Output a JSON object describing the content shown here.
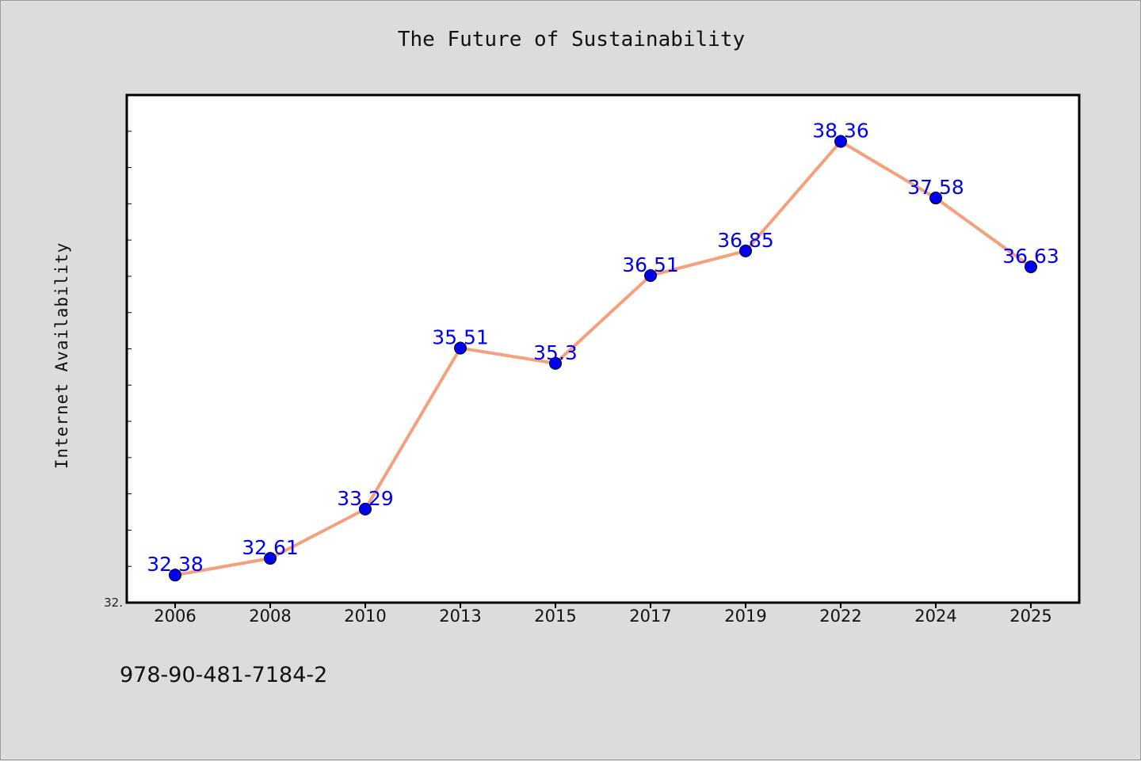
{
  "chart_data": {
    "type": "line",
    "title": "The Future of Sustainability",
    "xlabel": "",
    "ylabel": "Internet Availability",
    "categories": [
      "2006",
      "2008",
      "2010",
      "2013",
      "2015",
      "2017",
      "2019",
      "2022",
      "2024",
      "2025"
    ],
    "series": [
      {
        "values": [
          32.38,
          32.61,
          33.29,
          35.51,
          35.3,
          36.51,
          36.85,
          38.36,
          37.58,
          36.63
        ],
        "data_labels": [
          "32.38",
          "32.61",
          "33.29",
          "35.51",
          "35.3",
          "36.51",
          "36.85",
          "38.36",
          "37.58",
          "36.63"
        ]
      }
    ],
    "ylim": [
      32.0,
      39.0
    ],
    "y_tick_label": "32.",
    "grid": false,
    "legend": "none",
    "colors": {
      "line": "#f4a07c",
      "marker": "#0000ee",
      "data_label": "#0000ee",
      "background": "#dcdcdc",
      "plot_background": "#ffffff"
    }
  },
  "footer": {
    "isbn": "978-90-481-7184-2"
  }
}
